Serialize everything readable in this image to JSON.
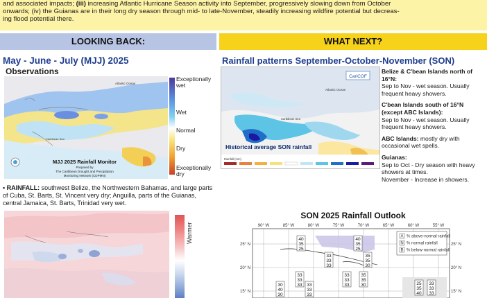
{
  "intro": {
    "line1_pre": "and associated impacts; ",
    "line1_bold": "(iii)",
    "line1_post": " increasing Atlantic Hurricane Season activity into September, progressively slowing down from October",
    "line2": "onwards; (iv) the Guianas are in their long dry season through mid- to late-November, steadily increasing wildfire potential but decreas-",
    "line3": "ing flood potential there."
  },
  "left": {
    "header": "LOOKING BACK:",
    "title": "May - June - July (MJJ) 2025",
    "observations": "Observations",
    "map_caption": "MJJ 2025 Rainfall Monitor",
    "map_credit1": "Prepared by",
    "map_credit2": "The Caribbean Drought and Precipitation",
    "map_credit3": "Monitoring Network (CDPMN)",
    "map_label_atlantic": "Atlantic Ocean",
    "map_label_caribbean": "Caribbean Sea",
    "legend": {
      "exc_wet": "Exceptionally wet",
      "wet": "Wet",
      "normal": "Normal",
      "dry": "Dry",
      "exc_dry": "Exceptionally dry"
    },
    "rainfall_label": "• RAINFALL:",
    "rainfall_text": " southwest Belize, the Northwestern Bahamas, and large parts of Cuba, St. Barts, St. Vincent very dry; Anguilla, parts of the Guianas, central Jamaica, St. Barts, Trinidad very wet.",
    "temp_legend": "Warmer"
  },
  "right": {
    "header": "WHAT NEXT?",
    "title": "Rainfall patterns September-October-November (SON)",
    "map_caption": "Historical average SON rainfall",
    "logo": "CariCOF",
    "map_label_atlantic": "Atlantic Ocean",
    "map_label_caribbean": "Caribbean Sea",
    "map_scale_label": "Rainfall (mm)",
    "notes": {
      "belize_h": "Belize & C'bean Islands north of 16°N:",
      "belize_t": "Sep to Nov - wet season. Usually frequent heavy showers.",
      "south_h": "C'bean Islands south of 16°N (except ABC Islands):",
      "south_t": "Sep to Nov - wet season. Usually frequent heavy showers.",
      "abc_h": "ABC Islands:",
      "abc_t": "mostly dry with occasional wet spells.",
      "guianas_h": "Guianas:",
      "guianas_t1": "Sep to Oct - Dry season with heavy showers at times.",
      "guianas_t2": "November - Increase in showers."
    },
    "outlook_title": "SON 2025 Rainfall Outlook",
    "outlook_lon": [
      "90° W",
      "85° W",
      "80° W",
      "75° W",
      "70° W",
      "65° W",
      "60° W",
      "55° W"
    ],
    "outlook_lat": [
      "25° N",
      "20° N",
      "15° N"
    ],
    "outlook_legend": [
      "% above-normal rainfall",
      "% normal rainfall",
      "% below-normal rainfall"
    ],
    "outlook_legend_keys": [
      "A",
      "N",
      "B"
    ]
  }
}
